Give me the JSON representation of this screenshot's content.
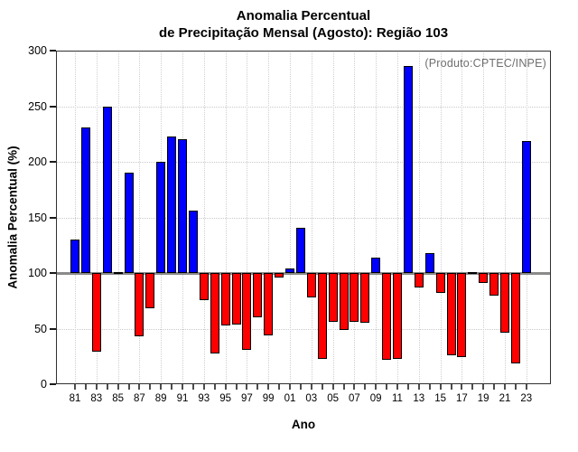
{
  "title": {
    "line1": "Anomalia Percentual",
    "line2": "de Precipitação Mensal (Agosto): Região 103"
  },
  "annotation": "(Produto:CPTEC/INPE)",
  "chart_data": {
    "type": "bar",
    "title": "Anomalia Percentual de Precipitação Mensal (Agosto): Região 103",
    "xlabel": "Ano",
    "ylabel": "Anomalia Percentual (%)",
    "ylim": [
      0,
      300
    ],
    "yticks": [
      0,
      50,
      100,
      150,
      200,
      250,
      300
    ],
    "baseline": 100,
    "grid": "dotted",
    "legend": "none",
    "categories": [
      "81",
      "82",
      "83",
      "84",
      "85",
      "86",
      "87",
      "88",
      "89",
      "90",
      "91",
      "92",
      "93",
      "94",
      "95",
      "96",
      "97",
      "98",
      "99",
      "00",
      "01",
      "02",
      "03",
      "04",
      "05",
      "06",
      "07",
      "08",
      "09",
      "10",
      "11",
      "12",
      "13",
      "14",
      "15",
      "16",
      "17",
      "18",
      "19",
      "20",
      "21",
      "22",
      "23"
    ],
    "values": [
      130,
      231,
      29,
      250,
      101,
      190,
      43,
      68,
      200,
      223,
      220,
      156,
      76,
      28,
      53,
      54,
      31,
      60,
      44,
      96,
      104,
      141,
      78,
      23,
      56,
      49,
      56,
      55,
      114,
      22,
      23,
      286,
      87,
      118,
      82,
      26,
      24,
      101,
      91,
      80,
      46,
      19,
      219
    ],
    "x_labeled_ticks": [
      "81",
      "83",
      "85",
      "87",
      "89",
      "91",
      "93",
      "95",
      "97",
      "99",
      "01",
      "03",
      "05",
      "07",
      "09",
      "11",
      "13",
      "15",
      "17",
      "19",
      "21",
      "23"
    ],
    "colors": {
      "above_baseline": "#0000ff",
      "below_baseline": "#ff0000",
      "bar_border": "#000000",
      "baseline_line": "#8a8a8a",
      "annotation_text": "#6f6f6f"
    }
  }
}
